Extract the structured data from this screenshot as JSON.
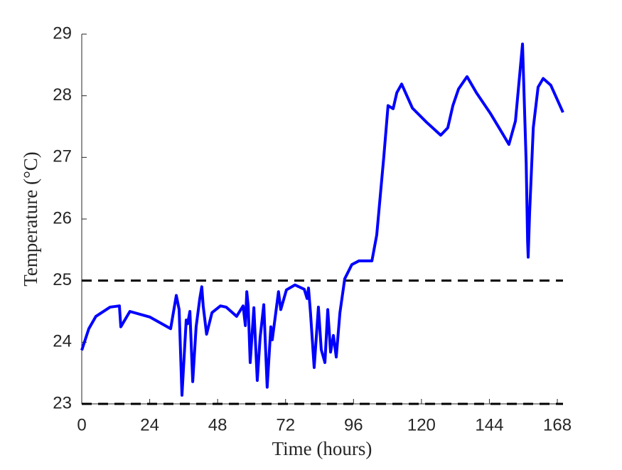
{
  "chart_data": {
    "type": "line",
    "xlabel": "Time (hours)",
    "ylabel": "Temperature (°C)",
    "xlim": [
      0,
      170
    ],
    "xticks": [
      0,
      24,
      48,
      72,
      96,
      120,
      144,
      168
    ],
    "ylim": [
      23,
      29
    ],
    "yticks": [
      23,
      24,
      25,
      26,
      27,
      28,
      29
    ],
    "reference_lines": [
      25,
      23
    ],
    "reference_color": "#000000",
    "series": [
      {
        "color": "#0000ff",
        "x": [
          0,
          2.5,
          5,
          10,
          13.3,
          13.8,
          17,
          24,
          31.4,
          33.4,
          34.4,
          35.4,
          36.9,
          37.4,
          38.2,
          39.2,
          40.4,
          41.7,
          42.4,
          42.9,
          44.1,
          46,
          49,
          51,
          54.7,
          57,
          57.8,
          58.3,
          58.8,
          59.5,
          60.8,
          62,
          63,
          64.3,
          65.5,
          66.8,
          67.3,
          69.5,
          70.3,
          72.3,
          75.3,
          78.6,
          79.6,
          80.1,
          80.8,
          82.1,
          83.6,
          84.6,
          85.9,
          86.9,
          87.9,
          88.9,
          89.9,
          91.2,
          92.9,
          95.4,
          97.9,
          102.5,
          104.2,
          106.7,
          108.2,
          110,
          111.3,
          113,
          116.8,
          121.8,
          126.8,
          129.3,
          131.1,
          133.1,
          136.1,
          139.4,
          144.4,
          148.2,
          150.9,
          153.2,
          155.7,
          157,
          157.5,
          157.7,
          158.2,
          159.5,
          161.2,
          163,
          165.7,
          170
        ],
        "values": [
          23.87,
          24.22,
          24.42,
          24.57,
          24.59,
          24.25,
          24.5,
          24.41,
          24.22,
          24.76,
          24.53,
          23.14,
          24.36,
          24.3,
          24.5,
          23.36,
          24.25,
          24.71,
          24.9,
          24.59,
          24.13,
          24.48,
          24.59,
          24.57,
          24.42,
          24.59,
          24.27,
          24.82,
          24.59,
          23.67,
          24.56,
          23.38,
          24.07,
          24.61,
          23.27,
          24.25,
          24.04,
          24.82,
          24.53,
          24.85,
          24.93,
          24.86,
          24.71,
          24.88,
          24.48,
          23.59,
          24.57,
          23.88,
          23.67,
          24.53,
          23.84,
          24.11,
          23.76,
          24.48,
          25.03,
          25.26,
          25.32,
          25.32,
          25.74,
          27.01,
          27.84,
          27.79,
          28.05,
          28.19,
          27.8,
          27.57,
          27.36,
          27.48,
          27.84,
          28.11,
          28.31,
          28.05,
          27.71,
          27.42,
          27.21,
          27.59,
          28.84,
          26.9,
          25.63,
          25.38,
          26.09,
          27.48,
          28.14,
          28.28,
          28.17,
          27.73
        ]
      }
    ]
  }
}
